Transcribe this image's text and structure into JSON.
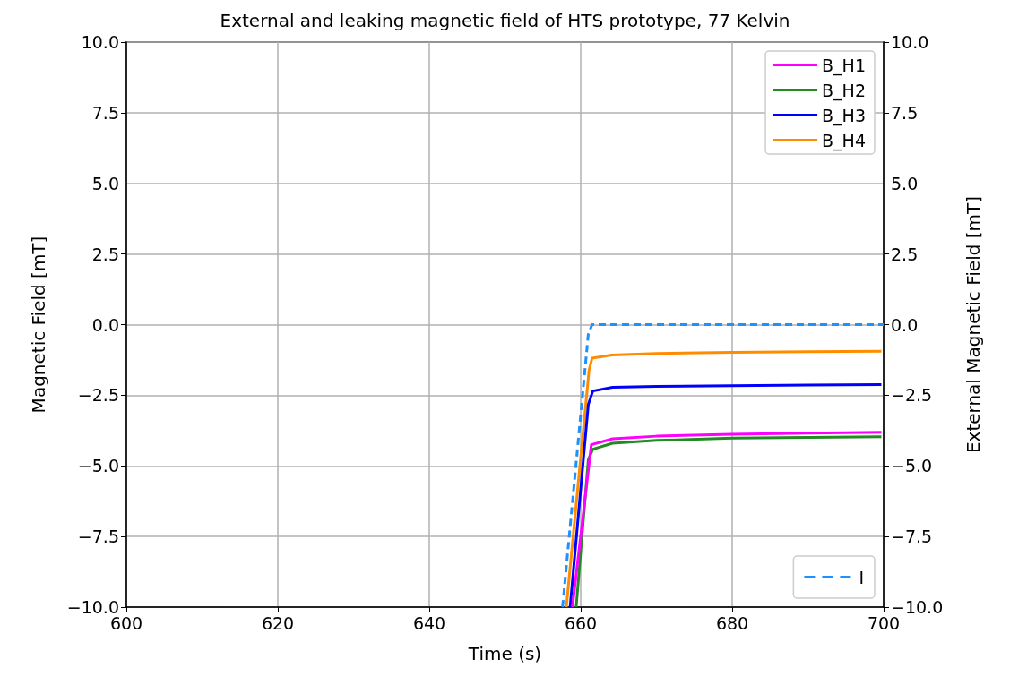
{
  "chart_data": {
    "type": "line",
    "title": "External and leaking magnetic field of HTS prototype, 77 Kelvin",
    "xlabel": "Time (s)",
    "ylabel": "Magnetic Field [mT]",
    "y2label": "External Magnetic Field [mT]",
    "xlim": [
      600,
      700
    ],
    "xticks": [
      600,
      620,
      640,
      660,
      680,
      700
    ],
    "ylim": [
      -10,
      10
    ],
    "yticks": [
      {
        "value": -10,
        "label": "−10.0"
      },
      {
        "value": -7.5,
        "label": "−7.5"
      },
      {
        "value": -5,
        "label": "−5.0"
      },
      {
        "value": -2.5,
        "label": "−2.5"
      },
      {
        "value": 0,
        "label": "0.0"
      },
      {
        "value": 2.5,
        "label": "2.5"
      },
      {
        "value": 5,
        "label": "5.0"
      },
      {
        "value": 7.5,
        "label": "7.5"
      },
      {
        "value": 10,
        "label": "10.0"
      }
    ],
    "y2lim": [
      -10,
      10
    ],
    "y2ticks": [
      {
        "value": -10,
        "label": "−10.0"
      },
      {
        "value": -7.5,
        "label": "−7.5"
      },
      {
        "value": -5,
        "label": "−5.0"
      },
      {
        "value": -2.5,
        "label": "−2.5"
      },
      {
        "value": 0,
        "label": "0.0"
      },
      {
        "value": 2.5,
        "label": "2.5"
      },
      {
        "value": 5,
        "label": "5.0"
      },
      {
        "value": 7.5,
        "label": "7.5"
      },
      {
        "value": 10,
        "label": "10.0"
      }
    ],
    "grid": true,
    "legend": "top right",
    "marker": "none",
    "series": [
      {
        "name": "B_H1",
        "color": "#ff00ff",
        "x": [
          658.9,
          661.4,
          664.2,
          670,
          680,
          690,
          699.7
        ],
        "values": [
          -10,
          -4.25,
          -4.04,
          -3.95,
          -3.88,
          -3.84,
          -3.81
        ]
      },
      {
        "name": "B_H2",
        "color": "#228b22",
        "x": [
          659.4,
          661.0,
          661.6,
          664.2,
          670,
          680,
          690,
          699.7
        ],
        "values": [
          -10,
          -4.78,
          -4.41,
          -4.2,
          -4.1,
          -4.02,
          -3.99,
          -3.97
        ]
      },
      {
        "name": "B_H3",
        "color": "#0000ff",
        "x": [
          658.6,
          661.0,
          661.6,
          664.2,
          670,
          680,
          690,
          699.7
        ],
        "values": [
          -10,
          -2.83,
          -2.35,
          -2.22,
          -2.19,
          -2.16,
          -2.14,
          -2.12
        ]
      },
      {
        "name": "B_H4",
        "color": "#ff8c00",
        "x": [
          658.1,
          661.1,
          661.5,
          664.1,
          670,
          680,
          690,
          699.7
        ],
        "values": [
          -10,
          -1.61,
          -1.19,
          -1.08,
          -1.02,
          -0.98,
          -0.96,
          -0.94
        ]
      },
      {
        "name": "I",
        "color": "#1e90ff",
        "axis": "y2",
        "line_style": "dashed",
        "x": [
          657.6,
          661.0,
          661.5,
          700
        ],
        "values": [
          -10,
          -0.34,
          0,
          0
        ]
      }
    ]
  }
}
